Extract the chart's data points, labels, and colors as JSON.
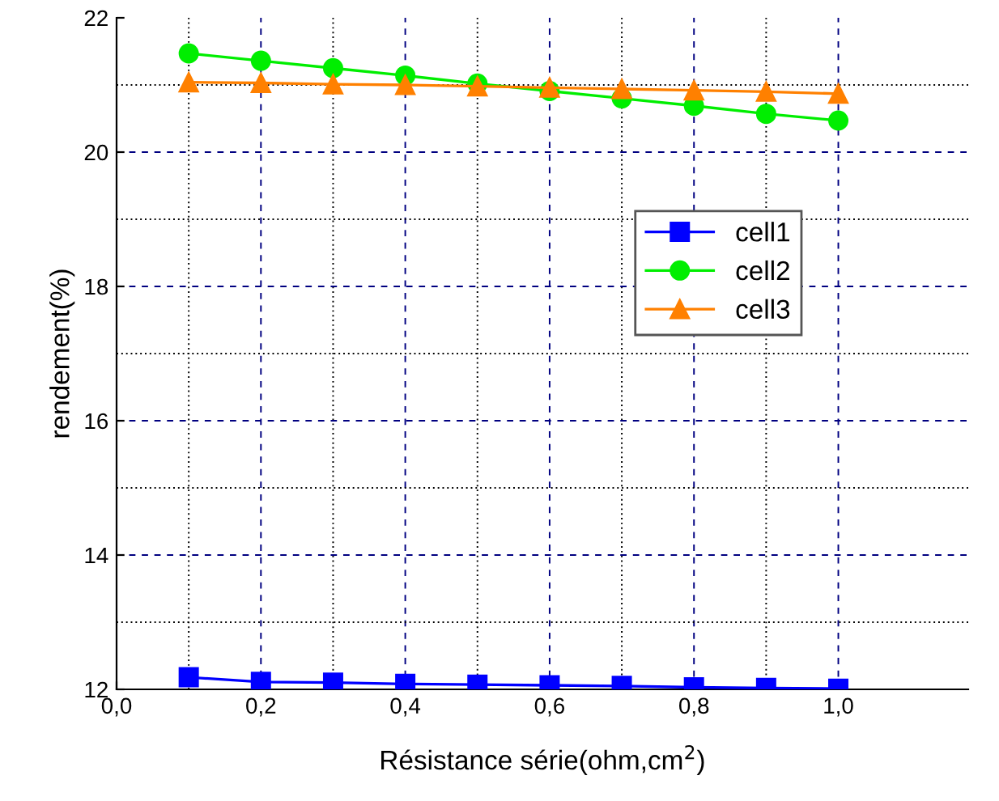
{
  "chart_data": {
    "type": "line",
    "xlabel": "Résistance série(ohm,cm$^{2}$)",
    "ylabel": "rendement(%)",
    "x": [
      0.1,
      0.2,
      0.3,
      0.4,
      0.5,
      0.6,
      0.7,
      0.8,
      0.9,
      1.0
    ],
    "series": [
      {
        "name": "cell1",
        "color": "#0000ff",
        "marker": "square",
        "values": [
          12.18,
          12.11,
          12.1,
          12.08,
          12.07,
          12.06,
          12.05,
          12.03,
          12.02,
          12.01
        ]
      },
      {
        "name": "cell2",
        "color": "#00ee00",
        "marker": "circle",
        "values": [
          21.47,
          21.36,
          21.25,
          21.14,
          21.02,
          20.91,
          20.8,
          20.69,
          20.57,
          20.47
        ]
      },
      {
        "name": "cell3",
        "color": "#ff8000",
        "marker": "triangle",
        "values": [
          21.04,
          21.03,
          21.01,
          21.0,
          20.98,
          20.96,
          20.94,
          20.92,
          20.9,
          20.87
        ]
      }
    ],
    "xlim": [
      0,
      1.18
    ],
    "ylim": [
      12,
      22
    ],
    "xticks": [
      {
        "value": 0,
        "label": "0,0"
      },
      {
        "value": 0.2,
        "label": "0,2"
      },
      {
        "value": 0.4,
        "label": "0,4"
      },
      {
        "value": 0.6,
        "label": "0,6"
      },
      {
        "value": 0.8,
        "label": "0,8"
      },
      {
        "value": 1.0,
        "label": "1,0"
      }
    ],
    "yticks": [
      12,
      14,
      16,
      18,
      20,
      22
    ],
    "grid": true,
    "legend": "right",
    "line_style": "solid"
  }
}
